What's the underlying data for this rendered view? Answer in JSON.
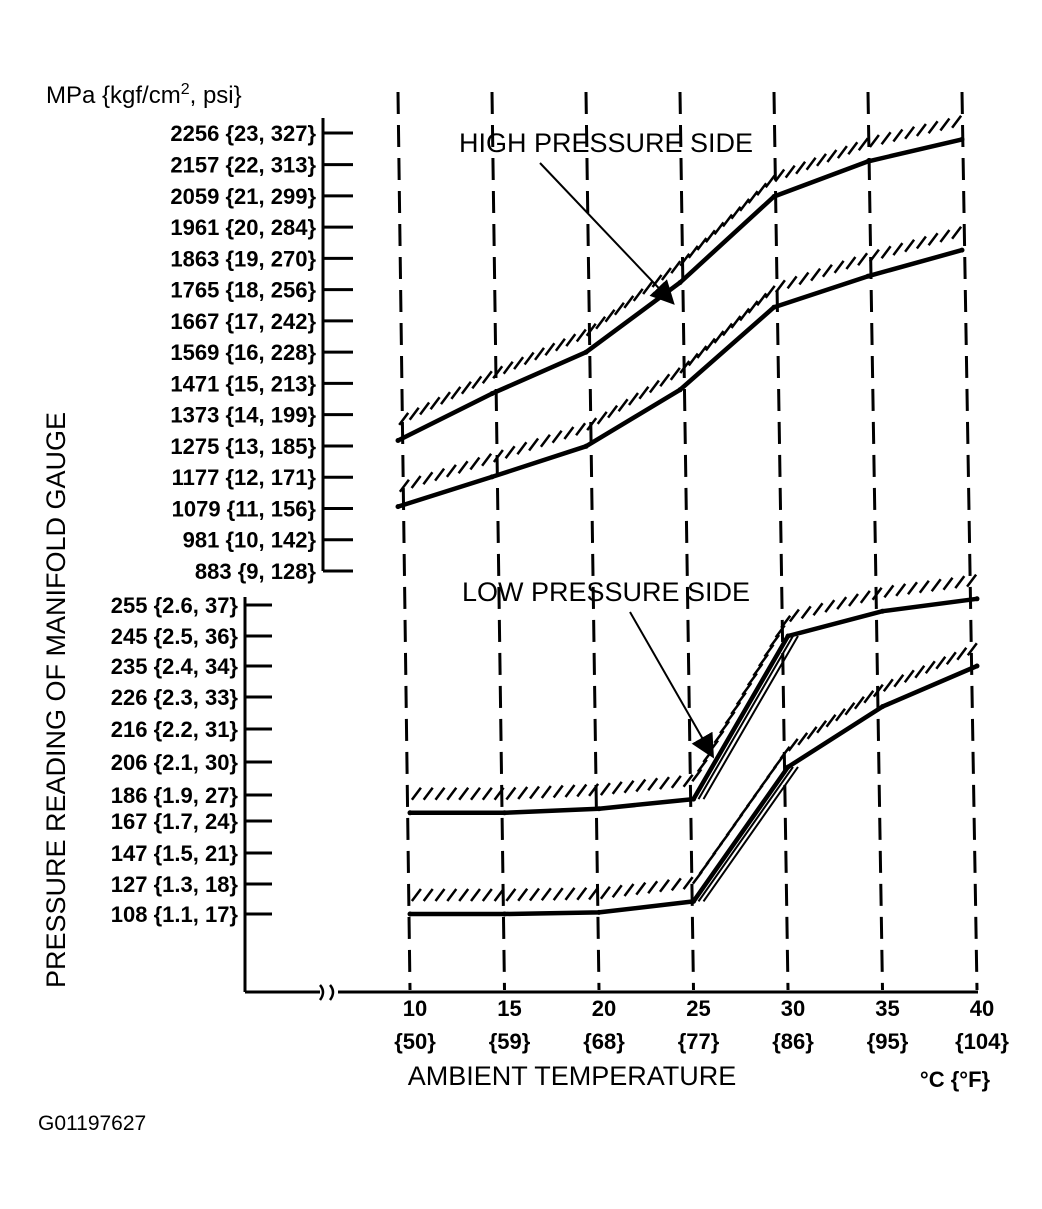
{
  "figure_id": "G01197627",
  "chart_data": {
    "type": "line",
    "ylabel": "PRESSURE READING OF MANIFOLD GAUGE",
    "y_units": "MPa {kgf/cm2, psi}",
    "y_units_main": "MPa {kgf/cm",
    "y_units_sup": "2",
    "y_units_tail": ", psi}",
    "xlabel": "AMBIENT TEMPERATURE",
    "x_units": "°C {°F}",
    "x_ticks": [
      {
        "c": 10,
        "label": "10",
        "sub": "{50}"
      },
      {
        "c": 15,
        "label": "15",
        "sub": "{59}"
      },
      {
        "c": 20,
        "label": "20",
        "sub": "{68}"
      },
      {
        "c": 25,
        "label": "25",
        "sub": "{77}"
      },
      {
        "c": 30,
        "label": "30",
        "sub": "{86}"
      },
      {
        "c": 35,
        "label": "35",
        "sub": "{95}"
      },
      {
        "c": 40,
        "label": "40",
        "sub": "{104}"
      }
    ],
    "high_axis_ticks": [
      {
        "value": 2256,
        "label": "2256 {23, 327}"
      },
      {
        "value": 2157,
        "label": "2157 {22, 313}"
      },
      {
        "value": 2059,
        "label": "2059 {21, 299}"
      },
      {
        "value": 1961,
        "label": "1961 {20, 284}"
      },
      {
        "value": 1863,
        "label": "1863 {19, 270}"
      },
      {
        "value": 1765,
        "label": "1765 {18, 256}"
      },
      {
        "value": 1667,
        "label": "1667 {17, 242}"
      },
      {
        "value": 1569,
        "label": "1569 {16, 228}"
      },
      {
        "value": 1471,
        "label": "1471 {15, 213}"
      },
      {
        "value": 1373,
        "label": "1373 {14, 199}"
      },
      {
        "value": 1275,
        "label": "1275 {13, 185}"
      },
      {
        "value": 1177,
        "label": "1177 {12, 171}"
      },
      {
        "value": 1079,
        "label": "1079 {11, 156}"
      },
      {
        "value": 981,
        "label": "981 {10, 142}"
      },
      {
        "value": 883,
        "label": "883 {9, 128}"
      }
    ],
    "low_axis_ticks": [
      {
        "value": 255,
        "label": "255 {2.6, 37}"
      },
      {
        "value": 245,
        "label": "245 {2.5, 36}"
      },
      {
        "value": 235,
        "label": "235 {2.4, 34}"
      },
      {
        "value": 226,
        "label": "226 {2.3, 33}"
      },
      {
        "value": 216,
        "label": "216 {2.2, 31}"
      },
      {
        "value": 206,
        "label": "206 {2.1, 30}"
      },
      {
        "value": 186,
        "label": "186 {1.9, 27}"
      },
      {
        "value": 167,
        "label": "167 {1.7, 24}"
      },
      {
        "value": 147,
        "label": "147 {1.5, 21}"
      },
      {
        "value": 127,
        "label": "127 {1.3, 18}"
      },
      {
        "value": 108,
        "label": "108 {1.1, 17}"
      }
    ],
    "high_side": {
      "label": "HIGH PRESSURE SIDE",
      "upper": {
        "x": [
          10,
          15,
          20,
          25,
          30,
          35,
          40
        ],
        "y": [
          1292,
          1439,
          1569,
          1787,
          2057,
          2167,
          2236
        ]
      },
      "lower": {
        "x": [
          10,
          15,
          20,
          25,
          30,
          35,
          40
        ],
        "y": [
          1085,
          1178,
          1274,
          1451,
          1710,
          1807,
          1889
        ]
      }
    },
    "low_side": {
      "label": "LOW PRESSURE SIDE",
      "upper": {
        "x": [
          10,
          15,
          20,
          25,
          30,
          35,
          40
        ],
        "y": [
          173,
          173,
          176,
          183,
          245,
          253,
          257
        ]
      },
      "lower": {
        "x": [
          10,
          15,
          20,
          25,
          30,
          35,
          40
        ],
        "y": [
          108,
          108,
          109,
          116,
          203,
          223,
          235
        ]
      }
    }
  }
}
